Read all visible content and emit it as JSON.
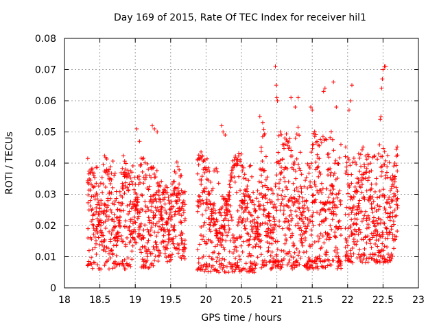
{
  "chart_data": {
    "type": "scatter",
    "title": "Day 169 of 2015, Rate Of TEC Index for receiver hil1",
    "xlabel": "GPS time / hours",
    "ylabel": "ROTI / TECUs",
    "xlim": [
      18,
      23
    ],
    "ylim": [
      0,
      0.08
    ],
    "x_ticks": [
      "18",
      "18.5",
      "19",
      "19.5",
      "20",
      "20.5",
      "21",
      "21.5",
      "22",
      "22.5",
      "23"
    ],
    "y_ticks": [
      "0",
      "0.01",
      "0.02",
      "0.03",
      "0.04",
      "0.05",
      "0.06",
      "0.07",
      "0.08"
    ],
    "grid": true,
    "marker": "+",
    "color": "#ff0000",
    "series": [
      {
        "name": "hil1",
        "segments": [
          {
            "x_start": 18.33,
            "x_end": 19.32,
            "base": 0.022,
            "amp": 0.014,
            "min": 0.006
          },
          {
            "x_start": 19.32,
            "x_end": 19.72,
            "base": 0.022,
            "amp": 0.012,
            "min": 0.008
          },
          {
            "x_start": 19.88,
            "x_end": 20.78,
            "base": 0.021,
            "amp": 0.015,
            "min": 0.005
          },
          {
            "x_start": 20.78,
            "x_end": 21.92,
            "base": 0.024,
            "amp": 0.018,
            "min": 0.006
          },
          {
            "x_start": 21.97,
            "x_end": 22.72,
            "base": 0.022,
            "amp": 0.016,
            "min": 0.008
          }
        ],
        "highlights": [
          {
            "x": 19.02,
            "y": 0.051
          },
          {
            "x": 19.06,
            "y": 0.047
          },
          {
            "x": 19.24,
            "y": 0.052
          },
          {
            "x": 19.27,
            "y": 0.051
          },
          {
            "x": 19.31,
            "y": 0.05
          },
          {
            "x": 20.22,
            "y": 0.052
          },
          {
            "x": 20.24,
            "y": 0.05
          },
          {
            "x": 20.27,
            "y": 0.049
          },
          {
            "x": 20.76,
            "y": 0.055
          },
          {
            "x": 20.8,
            "y": 0.053
          },
          {
            "x": 20.82,
            "y": 0.049
          },
          {
            "x": 20.98,
            "y": 0.071
          },
          {
            "x": 20.99,
            "y": 0.065
          },
          {
            "x": 21.0,
            "y": 0.061
          },
          {
            "x": 21.01,
            "y": 0.06
          },
          {
            "x": 21.2,
            "y": 0.061
          },
          {
            "x": 21.26,
            "y": 0.058
          },
          {
            "x": 21.3,
            "y": 0.061
          },
          {
            "x": 21.48,
            "y": 0.058
          },
          {
            "x": 21.5,
            "y": 0.057
          },
          {
            "x": 21.66,
            "y": 0.063
          },
          {
            "x": 21.68,
            "y": 0.064
          },
          {
            "x": 21.8,
            "y": 0.066
          },
          {
            "x": 21.84,
            "y": 0.058
          },
          {
            "x": 22.02,
            "y": 0.057
          },
          {
            "x": 22.06,
            "y": 0.065
          },
          {
            "x": 22.04,
            "y": 0.06
          },
          {
            "x": 22.5,
            "y": 0.07
          },
          {
            "x": 22.52,
            "y": 0.071
          },
          {
            "x": 22.54,
            "y": 0.071
          },
          {
            "x": 22.49,
            "y": 0.067
          },
          {
            "x": 22.48,
            "y": 0.064
          },
          {
            "x": 22.47,
            "y": 0.055
          },
          {
            "x": 22.46,
            "y": 0.054
          }
        ]
      }
    ]
  }
}
